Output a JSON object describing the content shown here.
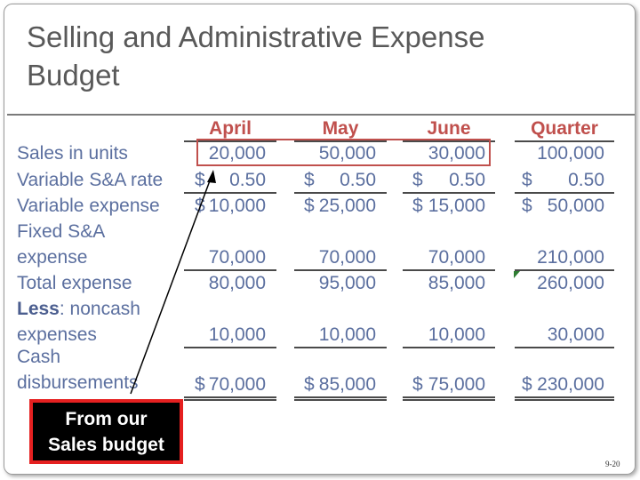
{
  "slide": {
    "title_line1": "Selling and Administrative Expense",
    "title_line2": "Budget",
    "slide_number": "9-20",
    "callout": {
      "line1": "From our",
      "line2": "Sales budget"
    }
  },
  "columns": [
    "April",
    "May",
    "June",
    "Quarter"
  ],
  "labels": {
    "sales_units": "Sales in units",
    "var_rate": "Variable S&A rate",
    "var_expense": "Variable expense",
    "fixed_line1": "Fixed S&A",
    "fixed_line2": "expense",
    "total_expense": "Total expense",
    "less_bold": "Less",
    "less_rest": ":  noncash",
    "noncash_line2": "expenses",
    "cash_line1": "Cash",
    "cash_line2": "disbursements"
  },
  "currency_symbol": "$",
  "rows": {
    "sales_units": [
      "20,000",
      "50,000",
      "30,000",
      "100,000"
    ],
    "var_rate": [
      "0.50",
      "0.50",
      "0.50",
      "0.50"
    ],
    "var_expense": [
      "10,000",
      "25,000",
      "15,000",
      "50,000"
    ],
    "fixed_expense": [
      "70,000",
      "70,000",
      "70,000",
      "210,000"
    ],
    "total_expense": [
      "80,000",
      "95,000",
      "85,000",
      "260,000"
    ],
    "noncash": [
      "10,000",
      "10,000",
      "10,000",
      "30,000"
    ],
    "cash": [
      "70,000",
      "85,000",
      "75,000",
      "230,000"
    ]
  },
  "colors": {
    "text": "#5b6f9f",
    "header": "#c0504d",
    "highlight_box": "#c0504d",
    "callout_border": "#e52020",
    "callout_bg": "#000000"
  }
}
